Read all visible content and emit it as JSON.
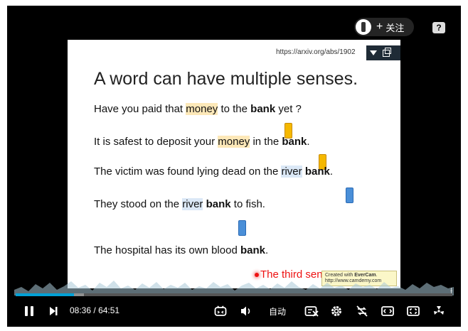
{
  "header": {
    "follow_plus": "+",
    "follow_label": "关注",
    "help_label": "?"
  },
  "slide": {
    "url": "https://arxiv.org/abs/1902",
    "title": "A word can have multiple senses.",
    "sentences": [
      {
        "pre": "Have you paid that ",
        "hl": "money",
        "mid": " to the ",
        "bold": "bank",
        "post": " yet ?"
      },
      {
        "pre": "It is safest to deposit your ",
        "hl": "money",
        "mid": " in the ",
        "bold": "bank",
        "post": "."
      },
      {
        "pre": "The victim was found lying dead on the ",
        "hl": "river",
        "mid": " ",
        "bold": "bank",
        "post": "."
      },
      {
        "pre": "They stood on the ",
        "hl": "river",
        "mid": " ",
        "bold": "bank",
        "post": " to fish."
      },
      {
        "pre": "The hospital has its own blood ",
        "bold": "bank",
        "post": "."
      }
    ],
    "third_sense": "The third sense or not?",
    "watermark": {
      "line1_pre": "Created with ",
      "line1_brand": "EverCam",
      "line1_post": ".",
      "line2": "http://www.camdemy.com"
    }
  },
  "player": {
    "current_time": "08:36",
    "separator": "/",
    "total_time": "64:51",
    "progress_fraction": 0.133,
    "quality_label": "自动",
    "accent_color": "#00a1d6"
  }
}
